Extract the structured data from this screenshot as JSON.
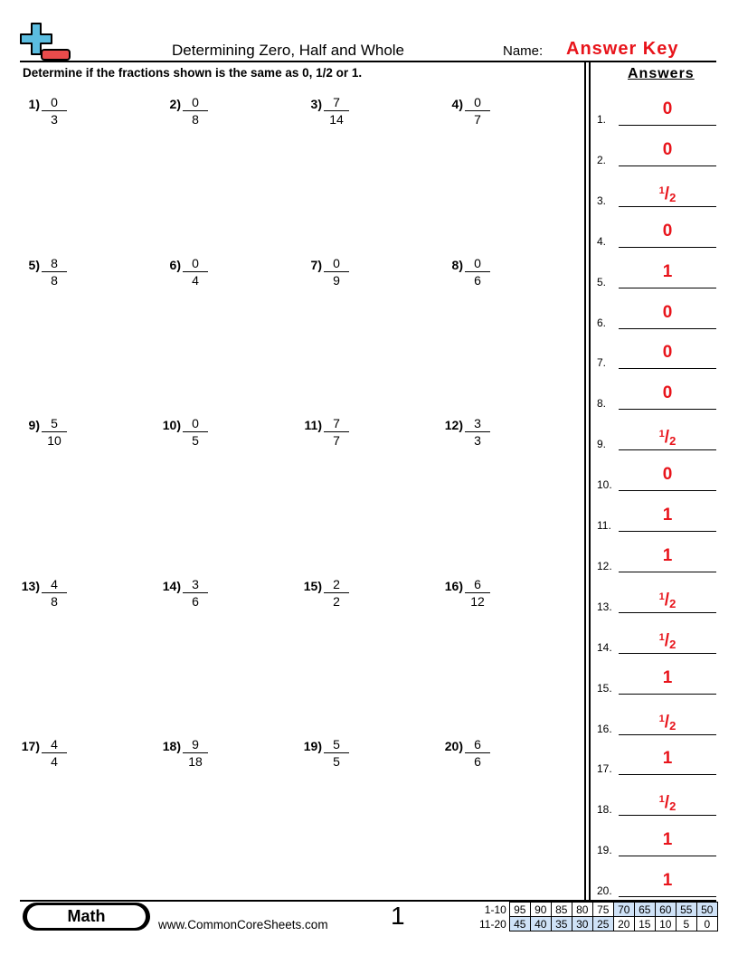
{
  "header": {
    "title": "Determining Zero, Half and Whole",
    "name_label": "Name:",
    "name_value": "Answer Key"
  },
  "logo": {
    "icon": "plus-minus-logo",
    "colors": {
      "plus": "#5bbde0",
      "minus": "#e94b4b"
    }
  },
  "instructions": "Determine if the fractions shown is the same as 0, 1/2 or 1.",
  "answers_heading": "Answers",
  "problems": [
    {
      "num": "1)",
      "n": "0",
      "d": "3"
    },
    {
      "num": "2)",
      "n": "0",
      "d": "8"
    },
    {
      "num": "3)",
      "n": "7",
      "d": "14"
    },
    {
      "num": "4)",
      "n": "0",
      "d": "7"
    },
    {
      "num": "5)",
      "n": "8",
      "d": "8"
    },
    {
      "num": "6)",
      "n": "0",
      "d": "4"
    },
    {
      "num": "7)",
      "n": "0",
      "d": "9"
    },
    {
      "num": "8)",
      "n": "0",
      "d": "6"
    },
    {
      "num": "9)",
      "n": "5",
      "d": "10"
    },
    {
      "num": "10)",
      "n": "0",
      "d": "5"
    },
    {
      "num": "11)",
      "n": "7",
      "d": "7"
    },
    {
      "num": "12)",
      "n": "3",
      "d": "3"
    },
    {
      "num": "13)",
      "n": "4",
      "d": "8"
    },
    {
      "num": "14)",
      "n": "3",
      "d": "6"
    },
    {
      "num": "15)",
      "n": "2",
      "d": "2"
    },
    {
      "num": "16)",
      "n": "6",
      "d": "12"
    },
    {
      "num": "17)",
      "n": "4",
      "d": "4"
    },
    {
      "num": "18)",
      "n": "9",
      "d": "18"
    },
    {
      "num": "19)",
      "n": "5",
      "d": "5"
    },
    {
      "num": "20)",
      "n": "6",
      "d": "6"
    }
  ],
  "answers": [
    {
      "label": "1.",
      "value": "0"
    },
    {
      "label": "2.",
      "value": "0"
    },
    {
      "label": "3.",
      "value": "1/2"
    },
    {
      "label": "4.",
      "value": "0"
    },
    {
      "label": "5.",
      "value": "1"
    },
    {
      "label": "6.",
      "value": "0"
    },
    {
      "label": "7.",
      "value": "0"
    },
    {
      "label": "8.",
      "value": "0"
    },
    {
      "label": "9.",
      "value": "1/2"
    },
    {
      "label": "10.",
      "value": "0"
    },
    {
      "label": "11.",
      "value": "1"
    },
    {
      "label": "12.",
      "value": "1"
    },
    {
      "label": "13.",
      "value": "1/2"
    },
    {
      "label": "14.",
      "value": "1/2"
    },
    {
      "label": "15.",
      "value": "1"
    },
    {
      "label": "16.",
      "value": "1/2"
    },
    {
      "label": "17.",
      "value": "1"
    },
    {
      "label": "18.",
      "value": "1/2"
    },
    {
      "label": "19.",
      "value": "1"
    },
    {
      "label": "20.",
      "value": "1"
    }
  ],
  "answer_color": "#e8141b",
  "footer": {
    "subject": "Math",
    "site": "www.CommonCoreSheets.com",
    "page": "1",
    "score_rows": [
      {
        "label": "1-10",
        "values": [
          "95",
          "90",
          "85",
          "80",
          "75",
          "70",
          "65",
          "60",
          "55",
          "50"
        ],
        "highlight_from": 5,
        "highlight_to": 9
      },
      {
        "label": "11-20",
        "values": [
          "45",
          "40",
          "35",
          "30",
          "25",
          "20",
          "15",
          "10",
          "5",
          "0"
        ],
        "highlight_from": 0,
        "highlight_to": 4
      }
    ],
    "highlight_color": "#cfe2f7"
  }
}
